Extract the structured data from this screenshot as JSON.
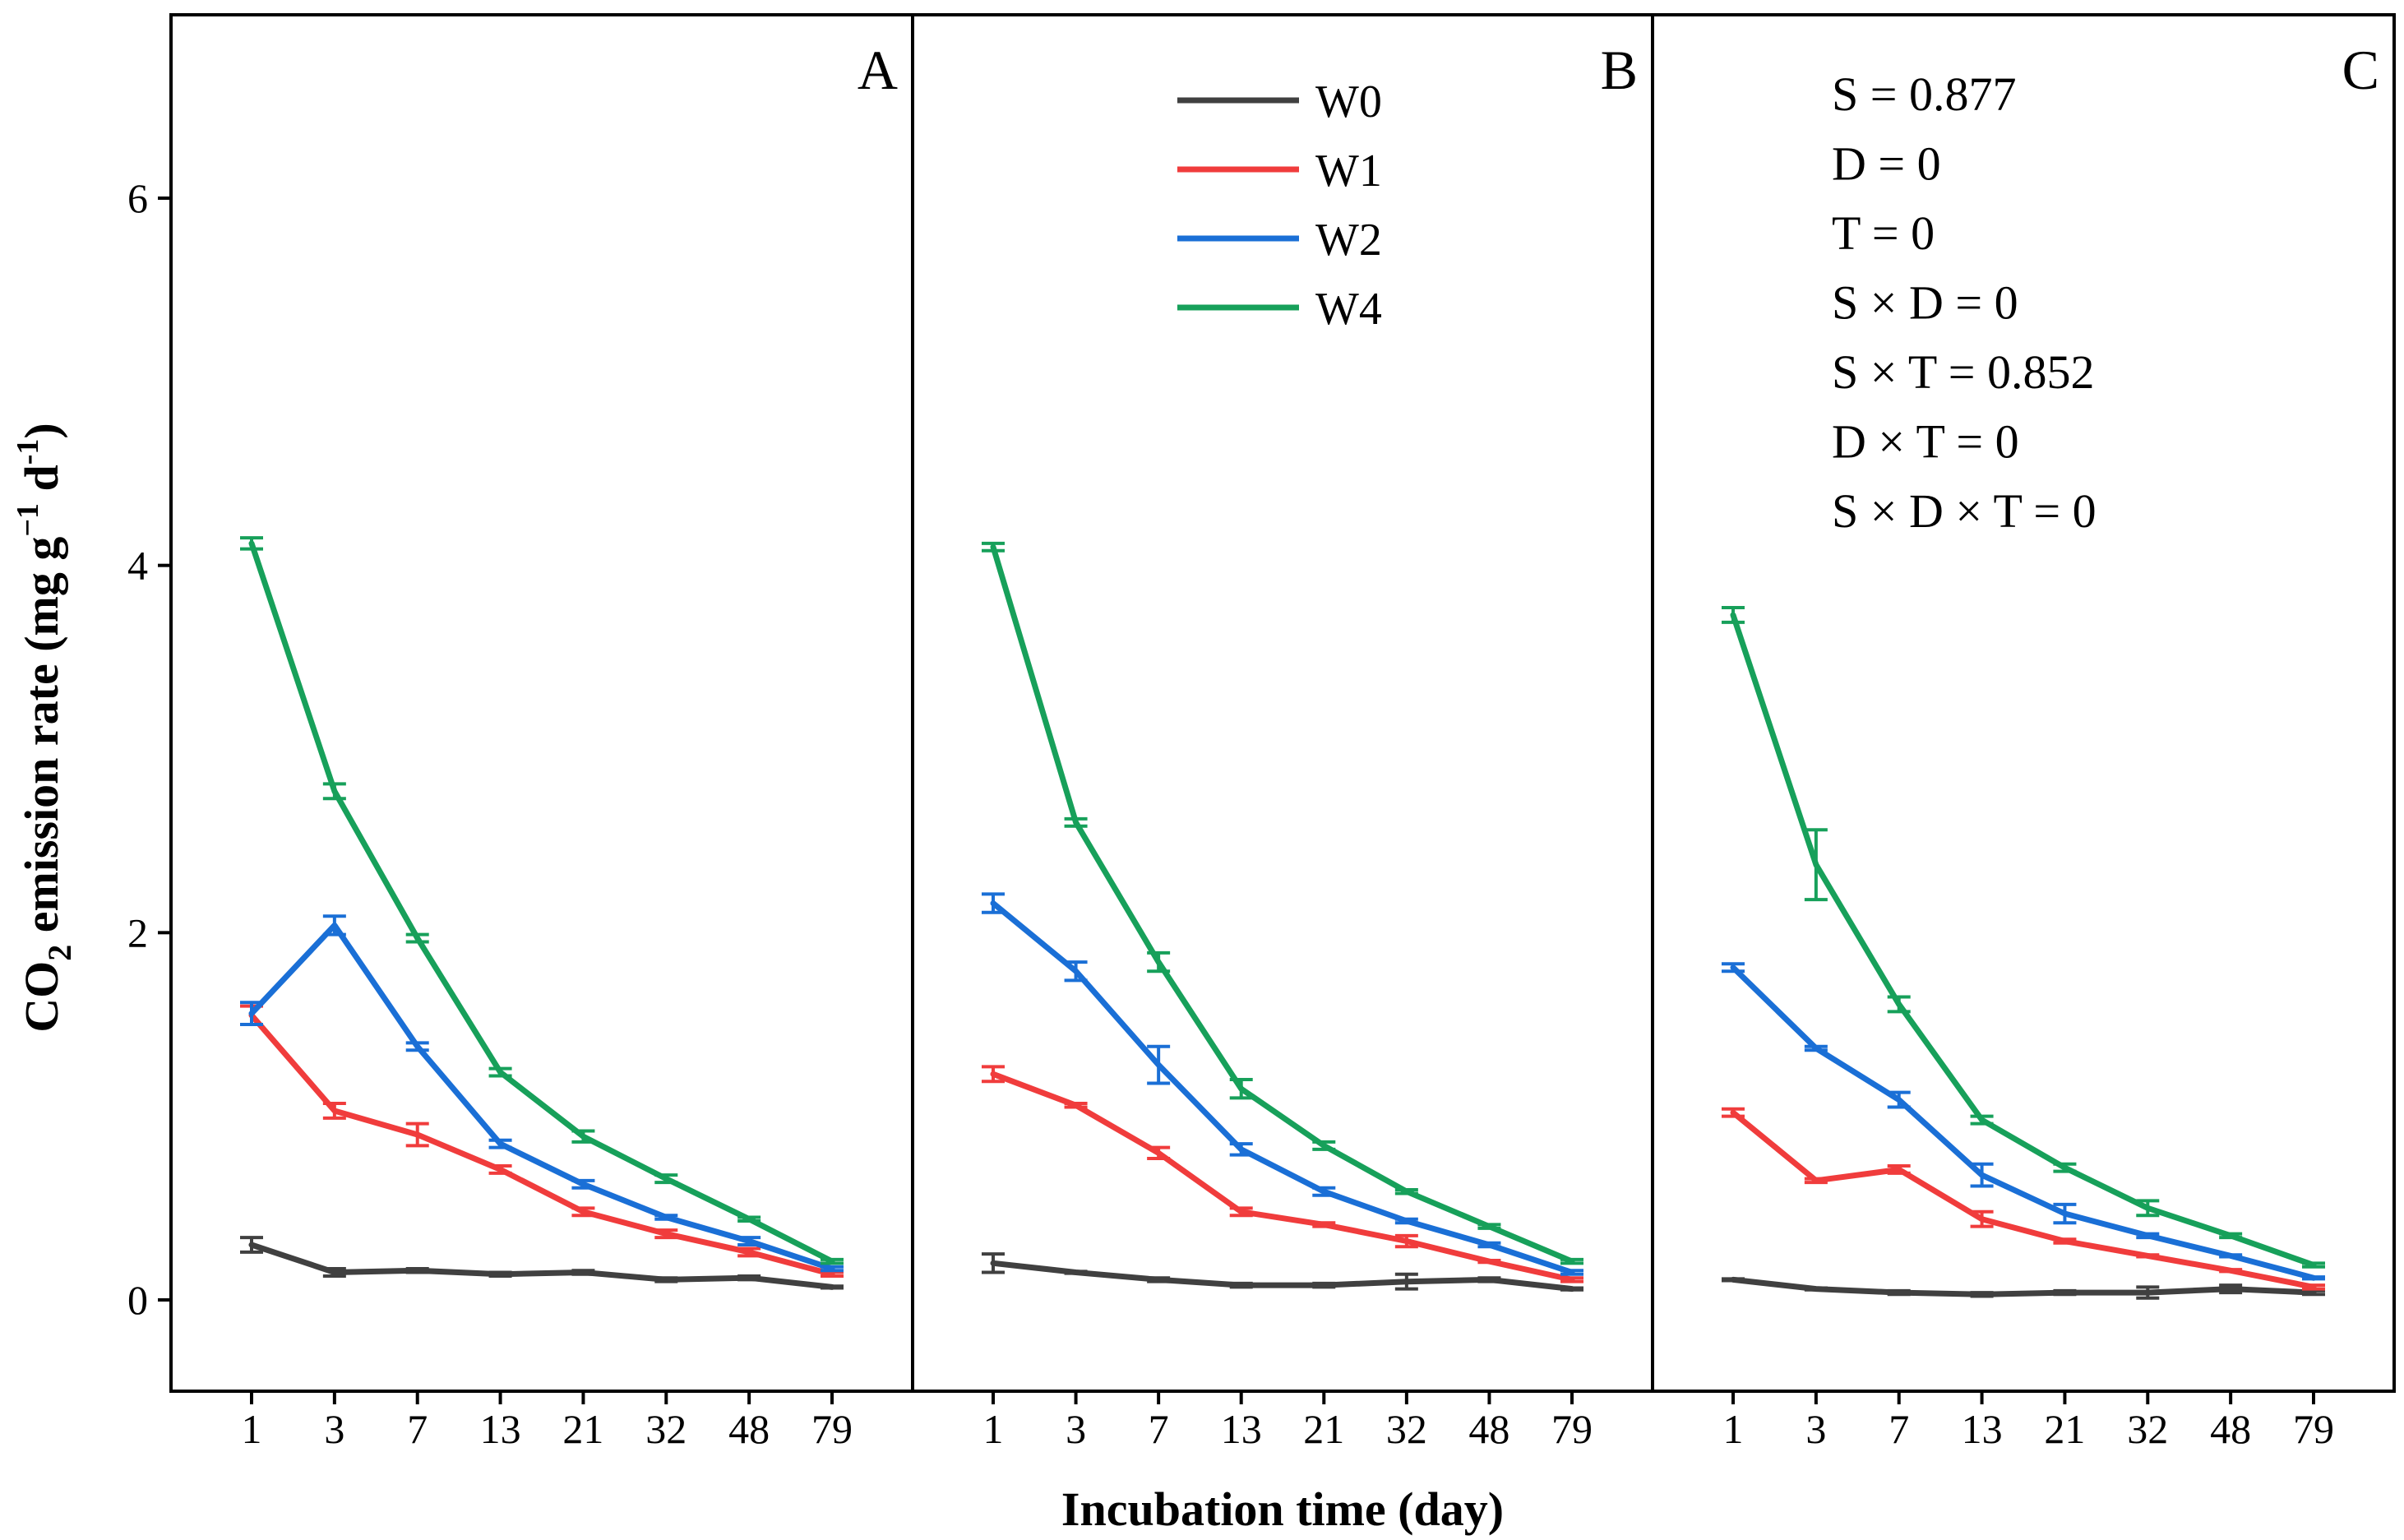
{
  "chart_data": {
    "type": "line",
    "ylabel_main": "CO",
    "ylabel_sub": "2",
    "ylabel_rest": " emission rate (mg g",
    "ylabel_sup1": "−1",
    "ylabel_mid": " d",
    "ylabel_sup2": "-1",
    "ylabel_end": ")",
    "xlabel": "Incubation time (day)",
    "categories": [
      "1",
      "3",
      "7",
      "13",
      "21",
      "32",
      "48",
      "79"
    ],
    "yticks": [
      0,
      2,
      4,
      6
    ],
    "ylim": [
      -0.5,
      7
    ],
    "colors": {
      "W0": "#404040",
      "W1": "#f03c3c",
      "W2": "#1a6fd6",
      "W4": "#17a05a"
    },
    "legend": [
      "W0",
      "W1",
      "W2",
      "W4"
    ],
    "stats": [
      "S = 0.877",
      "D = 0",
      "T = 0",
      "S × D = 0",
      "S × T = 0.852",
      "D × T = 0",
      "S × D × T = 0"
    ],
    "panels": [
      {
        "label": "A",
        "series": [
          {
            "name": "W0",
            "values": [
              0.3,
              0.15,
              0.16,
              0.14,
              0.15,
              0.11,
              0.12,
              0.07
            ],
            "errors": [
              0.04,
              0.02,
              0.01,
              0.01,
              0.01,
              0.01,
              0.01,
              0.005
            ]
          },
          {
            "name": "W1",
            "values": [
              1.55,
              1.03,
              0.9,
              0.71,
              0.48,
              0.36,
              0.26,
              0.14
            ],
            "errors": [
              0.05,
              0.04,
              0.06,
              0.02,
              0.02,
              0.02,
              0.02,
              0.01
            ]
          },
          {
            "name": "W2",
            "values": [
              1.56,
              2.04,
              1.38,
              0.85,
              0.63,
              0.45,
              0.32,
              0.17
            ],
            "errors": [
              0.06,
              0.05,
              0.02,
              0.02,
              0.02,
              0.01,
              0.02,
              0.01
            ]
          },
          {
            "name": "W4",
            "values": [
              4.12,
              2.77,
              1.97,
              1.24,
              0.89,
              0.66,
              0.44,
              0.21
            ],
            "errors": [
              0.03,
              0.04,
              0.02,
              0.02,
              0.03,
              0.02,
              0.01,
              0.01
            ]
          }
        ]
      },
      {
        "label": "B",
        "series": [
          {
            "name": "W0",
            "values": [
              0.2,
              0.15,
              0.11,
              0.08,
              0.08,
              0.1,
              0.11,
              0.06
            ],
            "errors": [
              0.05,
              0.005,
              0.01,
              0.01,
              0.01,
              0.04,
              0.01,
              0.005
            ]
          },
          {
            "name": "W1",
            "values": [
              1.23,
              1.06,
              0.8,
              0.48,
              0.41,
              0.32,
              0.21,
              0.11
            ],
            "errors": [
              0.04,
              0.01,
              0.03,
              0.02,
              0.01,
              0.03,
              0.005,
              0.01
            ]
          },
          {
            "name": "W2",
            "values": [
              2.16,
              1.79,
              1.28,
              0.82,
              0.59,
              0.43,
              0.3,
              0.15
            ],
            "errors": [
              0.05,
              0.05,
              0.1,
              0.03,
              0.02,
              0.01,
              0.01,
              0.01
            ]
          },
          {
            "name": "W4",
            "values": [
              4.1,
              2.6,
              1.84,
              1.15,
              0.84,
              0.59,
              0.4,
              0.21
            ],
            "errors": [
              0.02,
              0.02,
              0.05,
              0.05,
              0.02,
              0.01,
              0.01,
              0.01
            ]
          }
        ]
      },
      {
        "label": "C",
        "series": [
          {
            "name": "W0",
            "values": [
              0.11,
              0.06,
              0.04,
              0.03,
              0.04,
              0.04,
              0.06,
              0.04
            ],
            "errors": [
              0.005,
              0.005,
              0.01,
              0.01,
              0.01,
              0.03,
              0.02,
              0.01
            ]
          },
          {
            "name": "W1",
            "values": [
              1.02,
              0.65,
              0.71,
              0.44,
              0.32,
              0.24,
              0.16,
              0.07
            ],
            "errors": [
              0.02,
              0.01,
              0.02,
              0.04,
              0.01,
              0.005,
              0.005,
              0.01
            ]
          },
          {
            "name": "W2",
            "values": [
              1.81,
              1.37,
              1.09,
              0.68,
              0.47,
              0.35,
              0.24,
              0.12
            ],
            "errors": [
              0.02,
              0.01,
              0.04,
              0.06,
              0.05,
              0.01,
              0.005,
              0.005
            ]
          },
          {
            "name": "W4",
            "values": [
              3.73,
              2.37,
              1.61,
              0.98,
              0.72,
              0.5,
              0.35,
              0.19
            ],
            "errors": [
              0.04,
              0.19,
              0.04,
              0.02,
              0.02,
              0.04,
              0.01,
              0.01
            ]
          }
        ]
      }
    ]
  }
}
